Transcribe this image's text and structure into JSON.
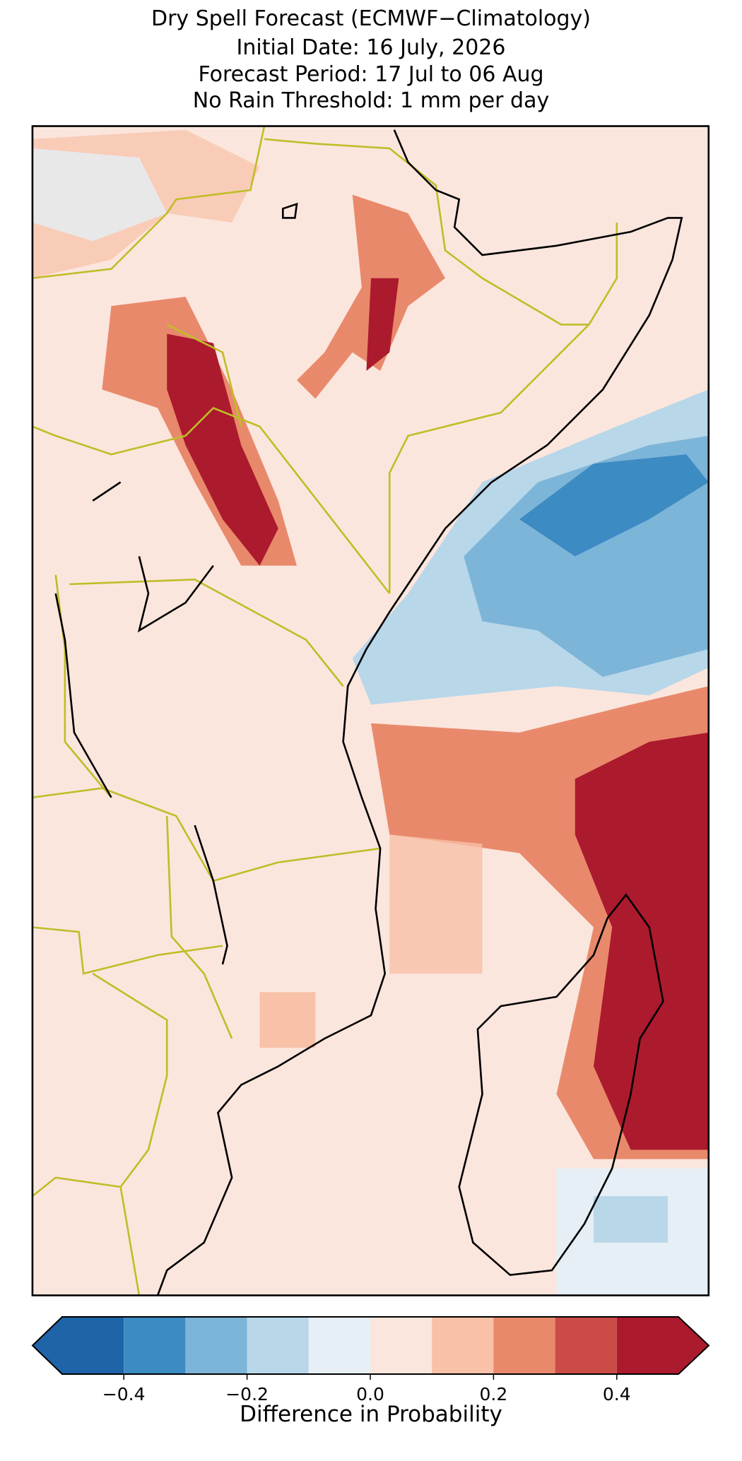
{
  "chart_data": {
    "type": "map",
    "title": [
      "Dry Spell Forecast (ECMWF−Climatology)",
      "Initial Date: 16 July, 2026",
      "Forecast Period: 17 Jul to 06 Aug",
      "No Rain Threshold: 1 mm per day"
    ],
    "colorbar": {
      "label": "Difference in Probability",
      "xlim": [
        -0.5,
        0.5
      ],
      "levels": [
        -0.5,
        -0.4,
        -0.3,
        -0.2,
        -0.1,
        0,
        0.1,
        0.2,
        0.3,
        0.4,
        0.5
      ],
      "colors": [
        "#1f63a8",
        "#3d8bc3",
        "#7cb5d8",
        "#b8d7e9",
        "#e5eff5",
        "#fbe6dd",
        "#f8c1a8",
        "#e9896b",
        "#cb4c46",
        "#ac1a2e"
      ],
      "extend": "both",
      "xticks": [
        {
          "value": -0.4,
          "label": "−0.4"
        },
        {
          "value": -0.2,
          "label": "−0.2"
        },
        {
          "value": 0,
          "label": "0.0"
        },
        0.2,
        0.4
      ]
    }
  }
}
